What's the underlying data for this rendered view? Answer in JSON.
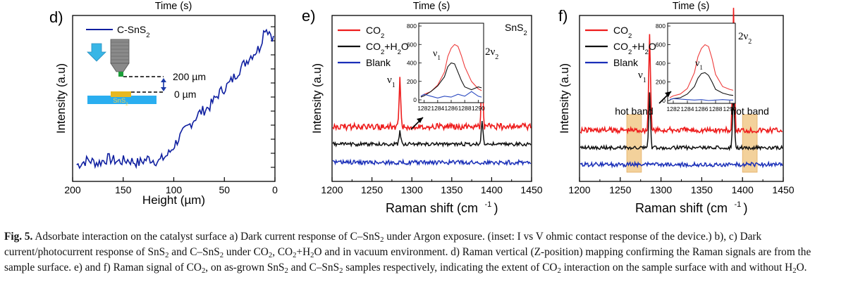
{
  "figure": {
    "top_labels": [
      "Time (s)",
      "Time (s)",
      "Time (s)"
    ],
    "panel_letters": [
      "d)",
      "e)",
      "f)"
    ]
  },
  "caption": {
    "label": "Fig. 5.",
    "segments": [
      {
        "t": "  Adsorbate interaction on the catalyst surface a) Dark current response of C–SnS"
      },
      {
        "sub": "2"
      },
      {
        "t": " under Argon exposure. (inset: I vs V ohmic contact response of the device.) b), c) Dark current/photocurrent response of SnS"
      },
      {
        "sub": "2"
      },
      {
        "t": " and C–SnS"
      },
      {
        "sub": "2"
      },
      {
        "t": " under CO"
      },
      {
        "sub": "2"
      },
      {
        "t": ", CO"
      },
      {
        "sub": "2"
      },
      {
        "t": "+H"
      },
      {
        "sub": "2"
      },
      {
        "t": "O and in vacuum environment. d) Raman vertical (Z-position) mapping confirming the Raman signals are from the sample surface. e) and f) Raman signal of CO"
      },
      {
        "sub": "2"
      },
      {
        "t": ", on as-grown SnS"
      },
      {
        "sub": "2"
      },
      {
        "t": " and C–SnS"
      },
      {
        "sub": "2"
      },
      {
        "t": " samples respectively, indicating the extent of CO"
      },
      {
        "sub": "2"
      },
      {
        "t": " interaction on the sample surface with and without H"
      },
      {
        "sub": "2"
      },
      {
        "t": "O."
      }
    ]
  },
  "chart_data": [
    {
      "panel": "d)",
      "type": "line",
      "xlabel": "Height (µm)",
      "ylabel": "Intensity (a.u)",
      "x_ticks": [
        200,
        150,
        100,
        50,
        0
      ],
      "xlim": [
        200,
        0
      ],
      "legend": [
        "C-SnS2"
      ],
      "series": [
        {
          "name": "C-SnS2",
          "color": "#0f1fa0",
          "x": [
            195,
            185,
            175,
            165,
            155,
            145,
            135,
            125,
            115,
            105,
            95,
            85,
            75,
            65,
            55,
            45,
            35,
            25,
            15,
            10,
            5,
            0
          ],
          "y": [
            0.08,
            0.11,
            0.09,
            0.12,
            0.1,
            0.11,
            0.09,
            0.12,
            0.1,
            0.15,
            0.25,
            0.33,
            0.41,
            0.45,
            0.54,
            0.6,
            0.69,
            0.77,
            0.83,
            0.96,
            0.93,
            0.87
          ]
        }
      ],
      "inset": {
        "labels": [
          "200 µm",
          "0 µm",
          "SnS2"
        ]
      }
    },
    {
      "panel": "e)",
      "type": "line",
      "xlabel": "Raman shift (cm-1)",
      "ylabel": "Intensity (a.u)",
      "x_ticks": [
        1200,
        1250,
        1300,
        1350,
        1400,
        1450
      ],
      "xlim": [
        1200,
        1450
      ],
      "legend": [
        "CO2",
        "CO2+H2O",
        "Blank"
      ],
      "sample_label": "SnS2",
      "annotations": [
        "ν1",
        "2ν2"
      ],
      "series": [
        {
          "name": "CO2",
          "color": "#ee1c1c",
          "baseline": 0.45,
          "peaks": [
            [
              1285,
              0.72
            ],
            [
              1388,
              0.95
            ]
          ]
        },
        {
          "name": "CO2+H2O",
          "color": "#111111",
          "baseline": 0.35,
          "peaks": [
            [
              1285,
              0.22
            ],
            [
              1388,
              0.38
            ]
          ]
        },
        {
          "name": "Blank",
          "color": "#1a2fb8",
          "baseline": 0.12,
          "peaks": []
        }
      ],
      "inset": {
        "type": "line",
        "x_ticks": [
          1282,
          1284,
          1286,
          1288,
          1290
        ],
        "y_ticks": [
          0,
          200,
          400,
          600,
          800
        ],
        "ylim": [
          0,
          800
        ],
        "annotation": "ν1",
        "series": [
          {
            "name": "CO2",
            "x": [
              1281.5,
              1282,
              1283,
              1284,
              1285,
              1285.5,
              1286,
              1286.5,
              1287,
              1287.5,
              1288,
              1289,
              1290,
              1290.5
            ],
            "y": [
              40,
              60,
              90,
              160,
              300,
              470,
              560,
              600,
              580,
              480,
              360,
              200,
              120,
              100
            ]
          },
          {
            "name": "CO2+H2O",
            "x": [
              1281.5,
              1282,
              1283,
              1284,
              1285,
              1285.5,
              1286,
              1286.5,
              1287,
              1287.5,
              1288,
              1289,
              1290,
              1290.5
            ],
            "y": [
              30,
              45,
              90,
              150,
              250,
              360,
              400,
              390,
              300,
              210,
              140,
              110,
              140,
              130
            ]
          },
          {
            "name": "Blank",
            "x": [
              1281.5,
              1282,
              1283,
              1284,
              1285,
              1286,
              1287,
              1288,
              1289,
              1290,
              1290.5
            ],
            "y": [
              40,
              60,
              40,
              20,
              40,
              30,
              60,
              40,
              90,
              40,
              30
            ]
          }
        ]
      }
    },
    {
      "panel": "f)",
      "type": "line",
      "xlabel": "Raman shift (cm-1)",
      "ylabel": "Intensity (a.u)",
      "x_ticks": [
        1200,
        1250,
        1300,
        1350,
        1400,
        1450
      ],
      "xlim": [
        1200,
        1450
      ],
      "legend": [
        "CO2",
        "CO2+H2O",
        "Blank"
      ],
      "annotations": [
        "ν1",
        "2ν2",
        "hot band",
        "hot band"
      ],
      "hot_bands": [
        [
          1258,
          1276
        ],
        [
          1400,
          1418
        ]
      ],
      "series": [
        {
          "name": "CO2",
          "color": "#ee1c1c",
          "baseline": 0.45,
          "peaks": [
            [
              1286,
              0.82
            ],
            [
              1389,
              1.0
            ]
          ]
        },
        {
          "name": "CO2+H2O",
          "color": "#111111",
          "baseline": 0.32,
          "peaks": [
            [
              1286,
              0.45
            ],
            [
              1389,
              0.5
            ]
          ]
        },
        {
          "name": "Blank",
          "color": "#1a2fb8",
          "baseline": 0.12,
          "peaks": []
        }
      ],
      "inset": {
        "type": "line",
        "x_ticks": [
          1282,
          1284,
          1286,
          1288,
          1290
        ],
        "y_ticks": [
          0,
          200,
          400,
          600,
          800
        ],
        "ylim": [
          0,
          800
        ],
        "annotation": "ν1",
        "series": [
          {
            "name": "CO2",
            "x": [
              1281.5,
              1282,
              1283,
              1284,
              1285,
              1285.5,
              1286,
              1286.5,
              1287,
              1287.5,
              1288,
              1289,
              1290,
              1290.5
            ],
            "y": [
              30,
              50,
              70,
              130,
              300,
              470,
              560,
              600,
              580,
              450,
              280,
              150,
              120,
              110
            ]
          },
          {
            "name": "CO2+H2O",
            "x": [
              1281.5,
              1282,
              1283,
              1284,
              1285,
              1285.5,
              1286,
              1286.5,
              1287,
              1287.5,
              1288,
              1289,
              1290,
              1290.5
            ],
            "y": [
              10,
              20,
              30,
              70,
              150,
              240,
              290,
              300,
              270,
              200,
              120,
              80,
              60,
              55
            ]
          },
          {
            "name": "Blank",
            "x": [
              1281.5,
              1282,
              1283,
              1284,
              1285,
              1286,
              1287,
              1288,
              1289,
              1290,
              1290.5
            ],
            "y": [
              10,
              20,
              15,
              10,
              5,
              10,
              0,
              5,
              10,
              5,
              5
            ]
          }
        ]
      }
    }
  ]
}
